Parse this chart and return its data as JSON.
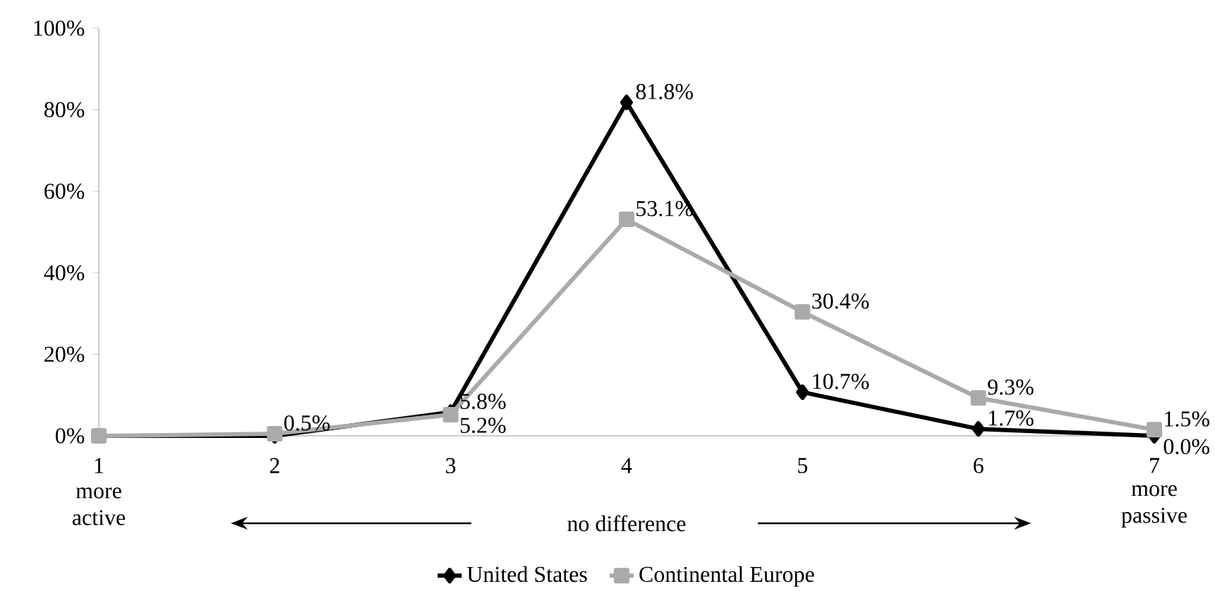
{
  "chart_data": {
    "type": "line",
    "categories": [
      "1",
      "2",
      "3",
      "4",
      "5",
      "6",
      "7"
    ],
    "series": [
      {
        "name": "United States",
        "color": "#000000",
        "marker": "diamond",
        "values": [
          0,
          0,
          5.8,
          81.8,
          10.7,
          1.7,
          0.0
        ],
        "value_labels": [
          null,
          null,
          "5.8%",
          "81.8%",
          "10.7%",
          "1.7%",
          "0.0%"
        ]
      },
      {
        "name": "Continental Europe",
        "color": "#aaaaaa",
        "marker": "square",
        "values": [
          0,
          0.5,
          5.2,
          53.1,
          30.4,
          9.3,
          1.5
        ],
        "value_labels": [
          null,
          "0.5%",
          "5.2%",
          "53.1%",
          "30.4%",
          "9.3%",
          "1.5%"
        ]
      }
    ],
    "ylim": [
      0,
      100
    ],
    "yticks": [
      {
        "value": 0,
        "label": "0%"
      },
      {
        "value": 20,
        "label": "20%"
      },
      {
        "value": 40,
        "label": "40%"
      },
      {
        "value": 60,
        "label": "60%"
      },
      {
        "value": 80,
        "label": "80%"
      },
      {
        "value": 100,
        "label": "100%"
      }
    ],
    "annotations": [
      "more active",
      "no difference",
      "more passive"
    ],
    "legend": "bottom",
    "grid": false,
    "line_style": "solid"
  }
}
